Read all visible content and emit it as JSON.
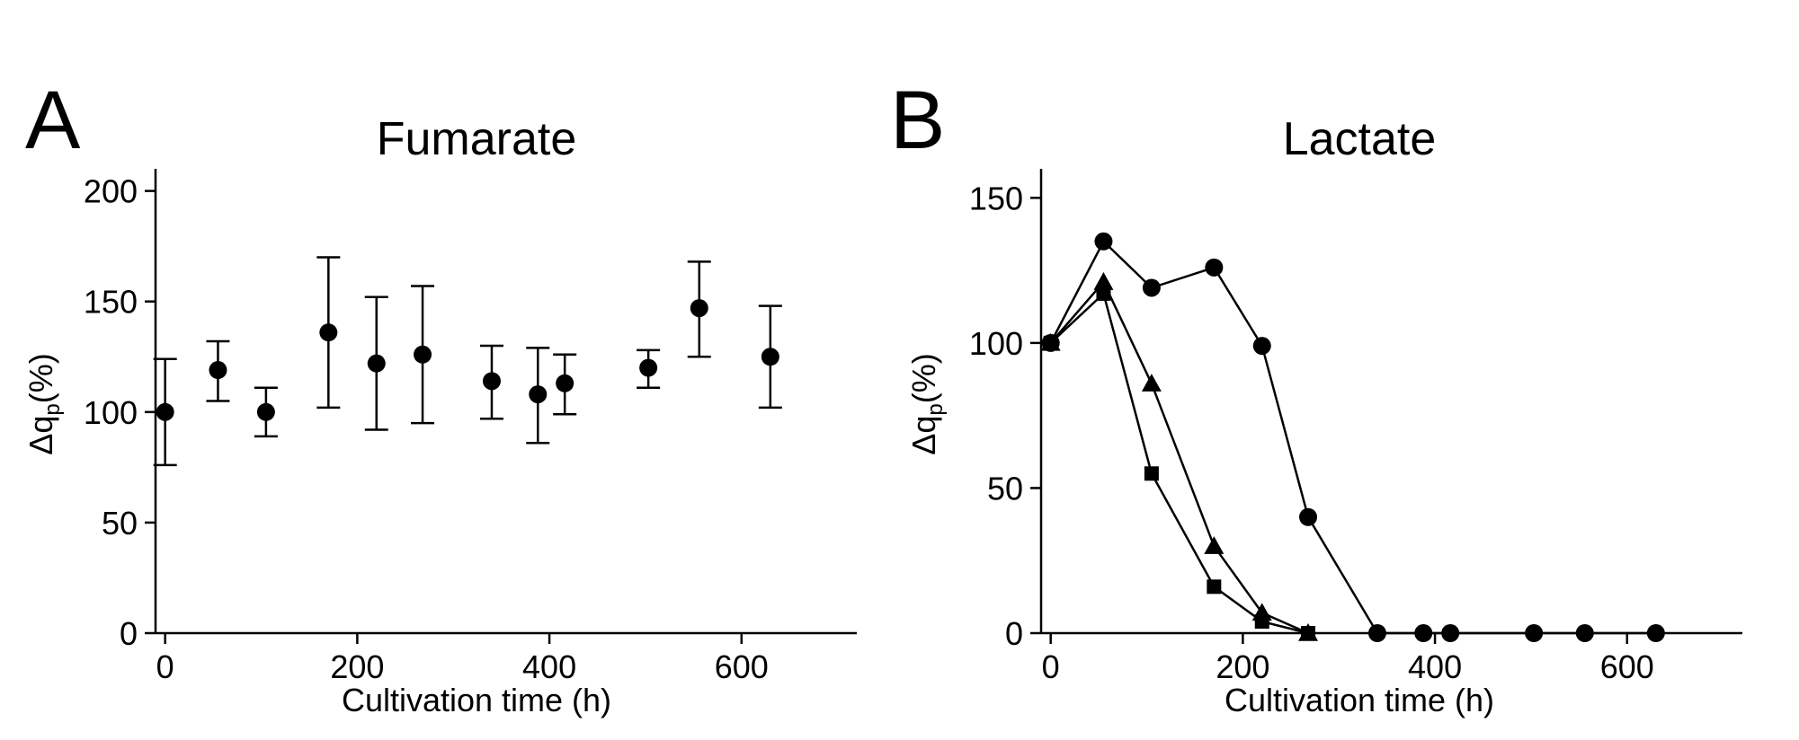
{
  "chart_data": [
    {
      "panel": "A",
      "type": "scatter",
      "title": "Fumarate",
      "xlabel": "Cultivation time (h)",
      "ylabel": "Δq",
      "ylabel_sub": "p",
      "ylabel_suffix": "(%)",
      "xlim": [
        -10,
        720
      ],
      "ylim": [
        0,
        210
      ],
      "xticks": [
        0,
        200,
        400,
        600
      ],
      "yticks": [
        0,
        50,
        100,
        150,
        200
      ],
      "series": [
        {
          "marker": "circle",
          "x": [
            0,
            55,
            105,
            170,
            220,
            268,
            340,
            388,
            416,
            503,
            556,
            630
          ],
          "y": [
            100,
            119,
            100,
            136,
            122,
            126,
            114,
            108,
            113,
            120,
            147,
            125
          ],
          "err_low": [
            76,
            105,
            89,
            102,
            92,
            95,
            97,
            86,
            99,
            111,
            125,
            102
          ],
          "err_high": [
            124,
            132,
            111,
            170,
            152,
            157,
            130,
            129,
            126,
            128,
            168,
            148
          ]
        }
      ]
    },
    {
      "panel": "B",
      "type": "line",
      "title": "Lactate",
      "xlabel": "Cultivation time (h)",
      "ylabel": "Δq",
      "ylabel_sub": "p",
      "ylabel_suffix": "(%)",
      "xlim": [
        -10,
        720
      ],
      "ylim": [
        0,
        160
      ],
      "xticks": [
        0,
        200,
        400,
        600
      ],
      "yticks": [
        0,
        50,
        100,
        150
      ],
      "series": [
        {
          "marker": "circle",
          "x": [
            0,
            55,
            105,
            170,
            220,
            268,
            340,
            388,
            416,
            503,
            556,
            630
          ],
          "y": [
            100,
            135,
            119,
            126,
            99,
            40,
            0,
            0,
            0,
            0,
            0,
            0
          ]
        },
        {
          "marker": "triangle",
          "x": [
            0,
            55,
            105,
            170,
            220,
            268
          ],
          "y": [
            100,
            121,
            86,
            30,
            7,
            0
          ]
        },
        {
          "marker": "square",
          "x": [
            0,
            55,
            105,
            170,
            220,
            268
          ],
          "y": [
            100,
            117,
            55,
            16,
            4,
            0
          ]
        }
      ]
    }
  ]
}
